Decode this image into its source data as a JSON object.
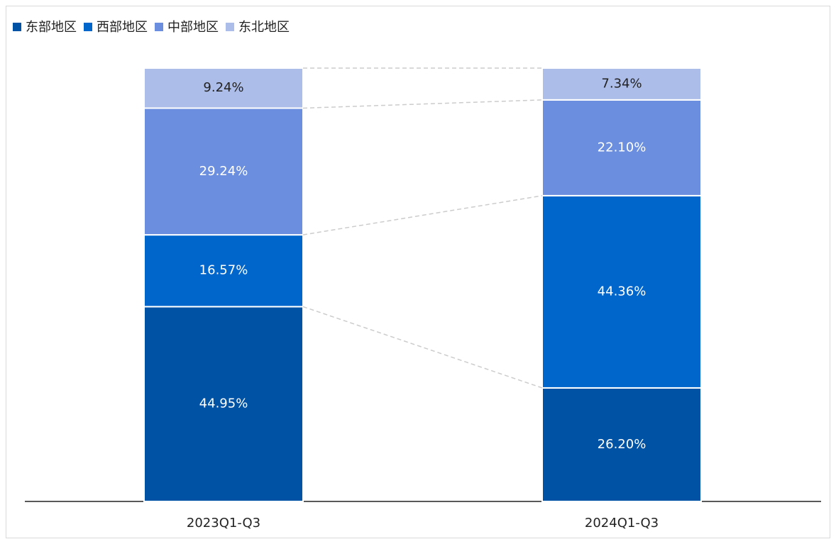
{
  "chart_data": {
    "type": "stacked_bar",
    "categories": [
      "2023Q1-Q3",
      "2024Q1-Q3"
    ],
    "series": [
      {
        "name": "东部地区",
        "color": "#0052a5",
        "values": [
          44.95,
          26.2
        ],
        "value_labels": [
          "44.95%",
          "26.20%"
        ]
      },
      {
        "name": "西部地区",
        "color": "#0066cc",
        "values": [
          16.57,
          44.36
        ],
        "value_labels": [
          "16.57%",
          "44.36%"
        ]
      },
      {
        "name": "中部地区",
        "color": "#6b8ede",
        "values": [
          29.24,
          22.1
        ],
        "value_labels": [
          "29.24%",
          "22.10%"
        ]
      },
      {
        "name": "东北地区",
        "color": "#adbde9",
        "values": [
          9.24,
          7.34
        ],
        "value_labels": [
          "9.24%",
          "7.34%"
        ]
      }
    ],
    "ylim": [
      0,
      100
    ],
    "legend": "top-left"
  }
}
